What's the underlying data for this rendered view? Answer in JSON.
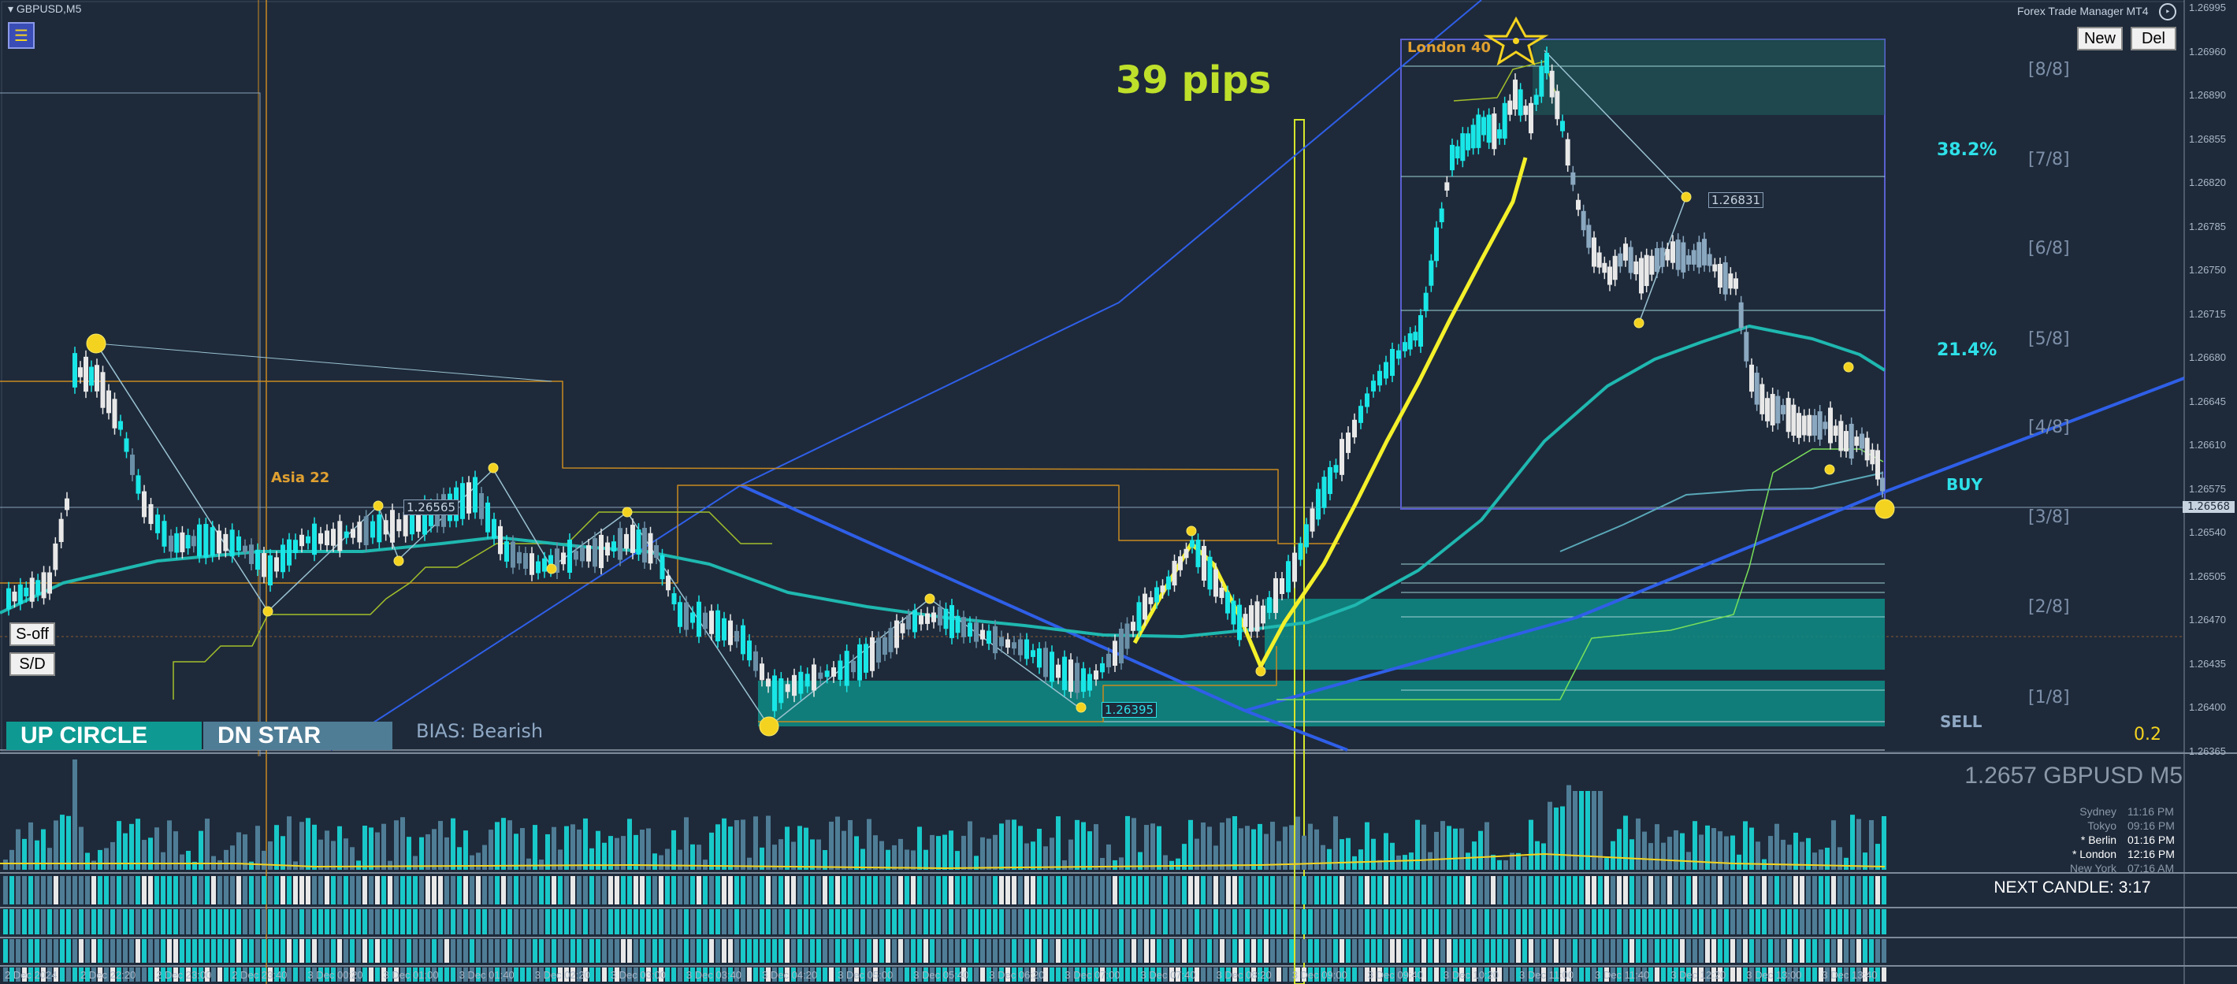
{
  "window": {
    "title": "GBPUSD,M5",
    "trade_manager": "Forex Trade Manager MT4",
    "new_label": "New",
    "del_label": "Del"
  },
  "overlay": {
    "pips_label": "39 pips",
    "asia_label": "Asia 22",
    "london_label": "London 40",
    "bias": "BIAS: Bearish",
    "up_circle": "UP CIRCLE",
    "dn_star": "DN STAR",
    "s_off": "S-off",
    "s_d": "S/D",
    "buy": "BUY",
    "sell": "SELL",
    "value": "0.2",
    "fib_a": "38.2%",
    "fib_b": "21.4%",
    "label_high": "1.26831",
    "label_low": "1.26395",
    "label_mid": "1.26565",
    "price_tag": "1.26568"
  },
  "murrey": [
    "[8/8]",
    "[7/8]",
    "[6/8]",
    "[5/8]",
    "[4/8]",
    "[3/8]",
    "[2/8]",
    "[1/8]"
  ],
  "price_axis": [
    "1.26995",
    "1.26960",
    "1.26890",
    "1.26855",
    "1.26820",
    "1.26785",
    "1.26750",
    "1.26715",
    "1.26680",
    "1.26645",
    "1.26610",
    "1.26575",
    "1.26540",
    "1.26505",
    "1.26470",
    "1.26435",
    "1.26400",
    "1.26365"
  ],
  "time_axis": [
    "2 Dec 2024",
    "2 Dec 22:20",
    "2 Dec 23:00",
    "2 Dec 23:40",
    "3 Dec 00:20",
    "3 Dec 01:00",
    "3 Dec 01:40",
    "3 Dec 02:20",
    "3 Dec 03:00",
    "3 Dec 03:40",
    "3 Dec 04:20",
    "3 Dec 05:00",
    "3 Dec 05:40",
    "3 Dec 06:20",
    "3 Dec 07:00",
    "3 Dec 07:40",
    "3 Dec 08:20",
    "3 Dec 09:00",
    "3 Dec 09:40",
    "3 Dec 10:20",
    "3 Dec 11:00",
    "3 Dec 11:40",
    "3 Dec 12:20",
    "3 Dec 13:00",
    "3 Dec 13:40"
  ],
  "quote": "1.2657 GBPUSD M5",
  "sessions": [
    {
      "name": "Sydney",
      "time": "11:16 PM",
      "active": false
    },
    {
      "name": "Tokyo",
      "time": "09:16 PM",
      "active": false
    },
    {
      "name": "* Berlin",
      "time": "01:16 PM",
      "active": true
    },
    {
      "name": "* London",
      "time": "12:16 PM",
      "active": true
    },
    {
      "name": "New York",
      "time": "07:16 AM",
      "active": false
    }
  ],
  "next_candle": "NEXT CANDLE: 3:17",
  "colors": {
    "bg": "#1e2a3a",
    "bull": "#19e6e6",
    "bear": "#e8e8e8",
    "muted": "#6a8fa6",
    "ma": "#1fb8b0",
    "yellow": "#f4f02a",
    "blue": "#2f5fe8",
    "orange": "#c88a20"
  }
}
